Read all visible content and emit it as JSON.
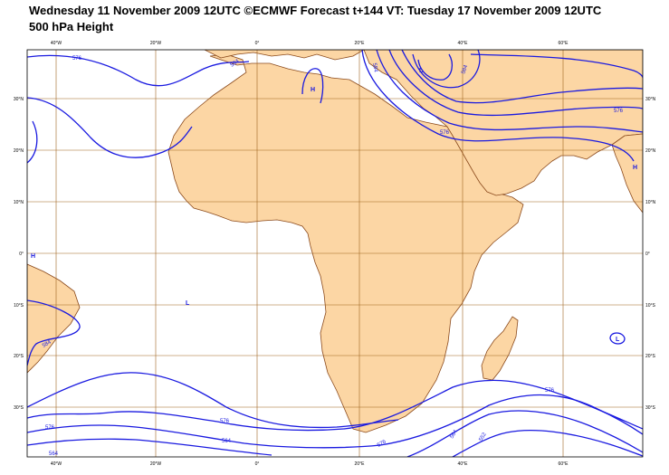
{
  "header": {
    "title_line1": "Wednesday 11 November 2009 12UTC ©ECMWF Forecast t+144 VT: Tuesday 17 November 2009 12UTC",
    "title_line2": "500 hPa Height"
  },
  "axes": {
    "lon_top": [
      "40°W",
      "20°W",
      "0°",
      "20°E",
      "40°E",
      "60°E"
    ],
    "lon_bottom": [
      "40°W",
      "20°W",
      "0°",
      "20°E",
      "40°E",
      "60°E"
    ],
    "lat_left": [
      "30°N",
      "20°N",
      "10°N",
      "0°",
      "10°S",
      "20°S",
      "30°S"
    ],
    "lat_right": [
      "30°N",
      "20°N",
      "10°N",
      "0°",
      "10°S",
      "20°S",
      "30°S"
    ]
  },
  "contour_labels": {
    "c1": "576",
    "c2": "584",
    "c3": "584",
    "c4": "576",
    "c5": "584",
    "c6": "576",
    "c7": "576",
    "c8": "564",
    "c9": "576",
    "c10": "564",
    "c11": "576",
    "c12": "576",
    "c13": "564",
    "c14": "552",
    "c15": "584"
  },
  "pressure_centers": {
    "h1": "H",
    "h2": "H",
    "h3": "H",
    "l1": "L",
    "l2": "L",
    "l3": "L"
  },
  "colors": {
    "land": "#fcd6a4",
    "coast": "#8b4a1c",
    "grid": "#a0641e",
    "contour": "#1a1ae0"
  }
}
